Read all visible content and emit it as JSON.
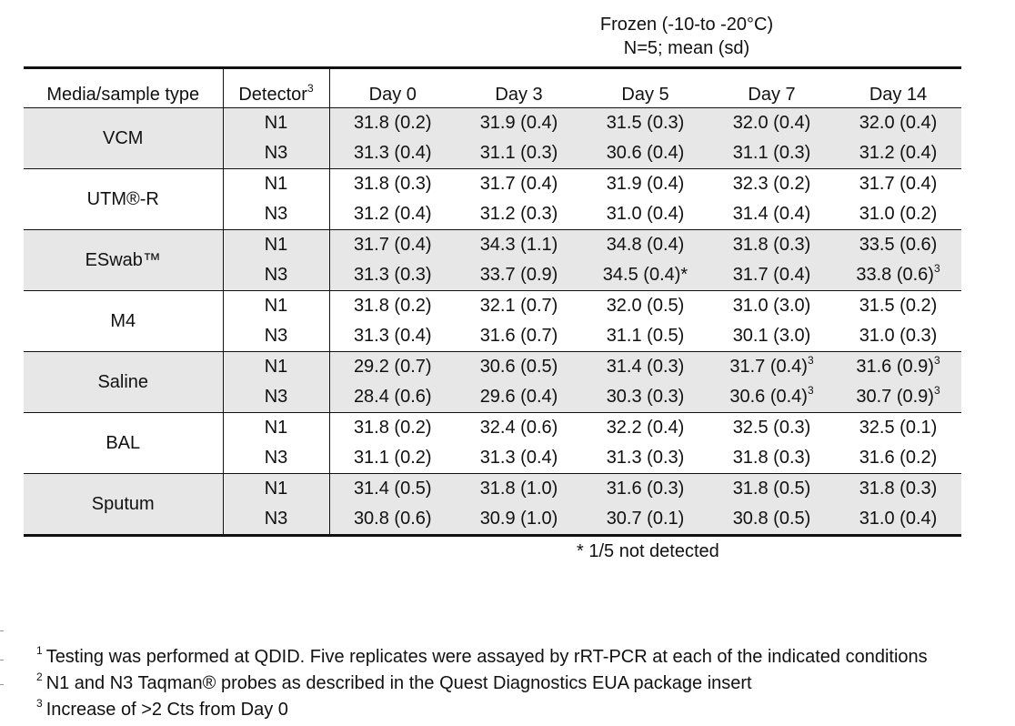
{
  "header": {
    "line1": "Frozen (-10-to -20°C)",
    "line2": "N=5; mean (sd)"
  },
  "columns": {
    "media": "Media/sample type",
    "detector": "Detector",
    "detector_sup": "3",
    "days": [
      "Day 0",
      "Day 3",
      "Day 5",
      "Day 7",
      "Day 14"
    ]
  },
  "groups": [
    {
      "name": "VCM",
      "rows": [
        {
          "detector": "N1",
          "cells": [
            {
              "v": "31.8 (0.2)"
            },
            {
              "v": "31.9 (0.4)"
            },
            {
              "v": "31.5 (0.3)"
            },
            {
              "v": "32.0 (0.4)"
            },
            {
              "v": "32.0 (0.4)"
            }
          ]
        },
        {
          "detector": "N3",
          "cells": [
            {
              "v": "31.3 (0.4)"
            },
            {
              "v": "31.1 (0.3)"
            },
            {
              "v": "30.6 (0.4)"
            },
            {
              "v": "31.1 (0.3)"
            },
            {
              "v": "31.2 (0.4)"
            }
          ]
        }
      ]
    },
    {
      "name": "UTM®-R",
      "rows": [
        {
          "detector": "N1",
          "cells": [
            {
              "v": "31.8 (0.3)"
            },
            {
              "v": "31.7 (0.4)"
            },
            {
              "v": "31.9 (0.4)"
            },
            {
              "v": "32.3 (0.2)"
            },
            {
              "v": "31.7 (0.4)"
            }
          ]
        },
        {
          "detector": "N3",
          "cells": [
            {
              "v": "31.2 (0.4)"
            },
            {
              "v": "31.2 (0.3)"
            },
            {
              "v": "31.0 (0.4)"
            },
            {
              "v": "31.4 (0.4)"
            },
            {
              "v": "31.0 (0.2)"
            }
          ]
        }
      ]
    },
    {
      "name": "ESwab™",
      "rows": [
        {
          "detector": "N1",
          "cells": [
            {
              "v": "31.7 (0.4)"
            },
            {
              "v": "34.3 (1.1)"
            },
            {
              "v": "34.8 (0.4)"
            },
            {
              "v": "31.8 (0.3)"
            },
            {
              "v": "33.5 (0.6)"
            }
          ]
        },
        {
          "detector": "N3",
          "cells": [
            {
              "v": "31.3 (0.3)"
            },
            {
              "v": "33.7 (0.9)"
            },
            {
              "v": "34.5 (0.4)*"
            },
            {
              "v": "31.7 (0.4)"
            },
            {
              "v": "33.8 (0.6)",
              "sup": "3"
            }
          ]
        }
      ]
    },
    {
      "name": "M4",
      "rows": [
        {
          "detector": "N1",
          "cells": [
            {
              "v": "31.8 (0.2)"
            },
            {
              "v": "32.1 (0.7)"
            },
            {
              "v": "32.0 (0.5)"
            },
            {
              "v": "31.0 (3.0)"
            },
            {
              "v": "31.5 (0.2)"
            }
          ]
        },
        {
          "detector": "N3",
          "cells": [
            {
              "v": "31.3 (0.4)"
            },
            {
              "v": "31.6 (0.7)"
            },
            {
              "v": "31.1 (0.5)"
            },
            {
              "v": "30.1 (3.0)"
            },
            {
              "v": "31.0 (0.3)"
            }
          ]
        }
      ]
    },
    {
      "name": "Saline",
      "rows": [
        {
          "detector": "N1",
          "cells": [
            {
              "v": "29.2 (0.7)"
            },
            {
              "v": "30.6 (0.5)"
            },
            {
              "v": "31.4 (0.3)"
            },
            {
              "v": "31.7 (0.4)",
              "sup": "3"
            },
            {
              "v": "31.6 (0.9)",
              "sup": "3"
            }
          ]
        },
        {
          "detector": "N3",
          "cells": [
            {
              "v": "28.4 (0.6)"
            },
            {
              "v": "29.6 (0.4)"
            },
            {
              "v": "30.3 (0.3)"
            },
            {
              "v": "30.6 (0.4)",
              "sup": "3"
            },
            {
              "v": "30.7 (0.9)",
              "sup": "3"
            }
          ]
        }
      ]
    },
    {
      "name": "BAL",
      "rows": [
        {
          "detector": "N1",
          "cells": [
            {
              "v": "31.8 (0.2)"
            },
            {
              "v": "32.4 (0.6)"
            },
            {
              "v": "32.2 (0.4)"
            },
            {
              "v": "32.5 (0.3)"
            },
            {
              "v": "32.5 (0.1)"
            }
          ]
        },
        {
          "detector": "N3",
          "cells": [
            {
              "v": "31.1 (0.2)"
            },
            {
              "v": "31.3 (0.4)"
            },
            {
              "v": "31.3 (0.3)"
            },
            {
              "v": "31.8 (0.3)"
            },
            {
              "v": "31.6 (0.2)"
            }
          ]
        }
      ]
    },
    {
      "name": "Sputum",
      "rows": [
        {
          "detector": "N1",
          "cells": [
            {
              "v": "31.4 (0.5)"
            },
            {
              "v": "31.8 (1.0)"
            },
            {
              "v": "31.6 (0.3)"
            },
            {
              "v": "31.8 (0.5)"
            },
            {
              "v": "31.8 (0.3)"
            }
          ]
        },
        {
          "detector": "N3",
          "cells": [
            {
              "v": "30.8 (0.6)"
            },
            {
              "v": "30.9 (1.0)"
            },
            {
              "v": "30.7 (0.1)"
            },
            {
              "v": "30.8 (0.5)"
            },
            {
              "v": "31.0 (0.4)"
            }
          ]
        }
      ]
    }
  ],
  "note": "* 1/5 not detected",
  "footnotes": [
    {
      "num": "1",
      "text": "Testing was performed at QDID.  Five replicates were assayed by rRT-PCR at each of the indicated conditions"
    },
    {
      "num": "2",
      "text": "N1 and N3 Taqman® probes as described in the Quest Diagnostics EUA package insert"
    },
    {
      "num": "3",
      "text": "Increase of >2 Cts from Day 0"
    }
  ]
}
